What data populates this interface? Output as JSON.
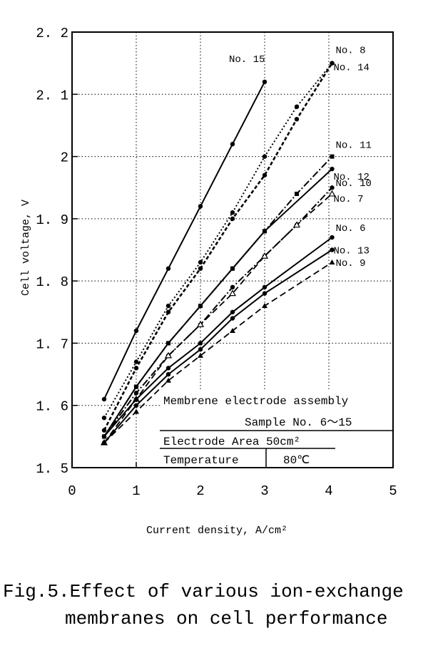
{
  "chart_data": {
    "type": "line",
    "xlabel": "Current density, A/cm²",
    "ylabel": "Cell voltage, V",
    "xlim": [
      0,
      5
    ],
    "ylim": [
      1.5,
      2.2
    ],
    "x_ticks": [
      "0",
      "1",
      "2",
      "3",
      "4",
      "5"
    ],
    "y_ticks": [
      "1.5",
      "1.6",
      "1.7",
      "1.8",
      "1.9",
      "2",
      "2.1",
      "2.2"
    ],
    "grid": "dotted",
    "annotations": [
      "Membrene  electrode assembly",
      "Sample No. 6～15",
      "Electrode Area 50cm²",
      "Temperature",
      "80℃"
    ],
    "series": [
      {
        "name": "No. 15",
        "style": "solid",
        "marker": "dot",
        "x": [
          0.5,
          1.0,
          1.5,
          2.0,
          2.5,
          3.0
        ],
        "y": [
          1.61,
          1.72,
          1.82,
          1.92,
          2.02,
          2.12
        ]
      },
      {
        "name": "No. 8",
        "style": "dotted",
        "marker": "dot",
        "x": [
          0.5,
          1.0,
          1.5,
          2.0,
          2.5,
          3.0,
          3.5,
          4.05
        ],
        "y": [
          1.58,
          1.67,
          1.76,
          1.83,
          1.91,
          2.0,
          2.08,
          2.15
        ]
      },
      {
        "name": "No. 14",
        "style": "dashed-dot",
        "marker": "dot",
        "x": [
          0.5,
          1.0,
          1.5,
          2.0,
          2.5,
          3.0,
          3.5,
          4.05
        ],
        "y": [
          1.56,
          1.66,
          1.75,
          1.82,
          1.9,
          1.97,
          2.06,
          2.15
        ]
      },
      {
        "name": "No. 11",
        "style": "dash-dot",
        "marker": "square",
        "x": [
          0.5,
          1.0,
          1.5,
          2.0,
          2.5,
          3.0,
          3.5,
          4.05
        ],
        "y": [
          1.55,
          1.63,
          1.7,
          1.76,
          1.82,
          1.88,
          1.94,
          2.0
        ]
      },
      {
        "name": "No. 12",
        "style": "solid",
        "marker": "dot",
        "x": [
          0.5,
          1.0,
          1.5,
          2.0,
          2.5,
          3.0,
          4.05
        ],
        "y": [
          1.55,
          1.63,
          1.7,
          1.76,
          1.82,
          1.88,
          1.98
        ]
      },
      {
        "name": "No. 10",
        "style": "dash-dot",
        "marker": "dot",
        "x": [
          0.5,
          1.0,
          1.5,
          2.0,
          2.5,
          3.0,
          3.5,
          4.05
        ],
        "y": [
          1.55,
          1.62,
          1.68,
          1.73,
          1.79,
          1.84,
          1.89,
          1.95
        ]
      },
      {
        "name": "No. 7",
        "style": "dashed",
        "marker": "triangle-open",
        "x": [
          0.5,
          1.0,
          1.5,
          2.0,
          2.5,
          3.0,
          3.5,
          4.05
        ],
        "y": [
          1.54,
          1.61,
          1.68,
          1.73,
          1.78,
          1.84,
          1.89,
          1.94
        ]
      },
      {
        "name": "No. 6",
        "style": "solid",
        "marker": "dot",
        "x": [
          0.5,
          1.0,
          1.5,
          2.0,
          2.5,
          3.0,
          4.05
        ],
        "y": [
          1.55,
          1.61,
          1.66,
          1.7,
          1.75,
          1.79,
          1.87
        ]
      },
      {
        "name": "No. 13",
        "style": "solid",
        "marker": "dot",
        "x": [
          0.5,
          1.0,
          1.5,
          2.0,
          2.5,
          3.0,
          4.05
        ],
        "y": [
          1.54,
          1.6,
          1.65,
          1.69,
          1.74,
          1.78,
          1.85
        ]
      },
      {
        "name": "No. 9",
        "style": "dashed",
        "marker": "triangle",
        "x": [
          0.5,
          1.0,
          1.5,
          2.0,
          2.5,
          3.0,
          4.05
        ],
        "y": [
          1.54,
          1.59,
          1.64,
          1.68,
          1.72,
          1.76,
          1.83
        ]
      }
    ]
  },
  "caption": {
    "line1": "Fig.5.Effect of various ion-exchange",
    "line2": "membranes on cell performance"
  }
}
